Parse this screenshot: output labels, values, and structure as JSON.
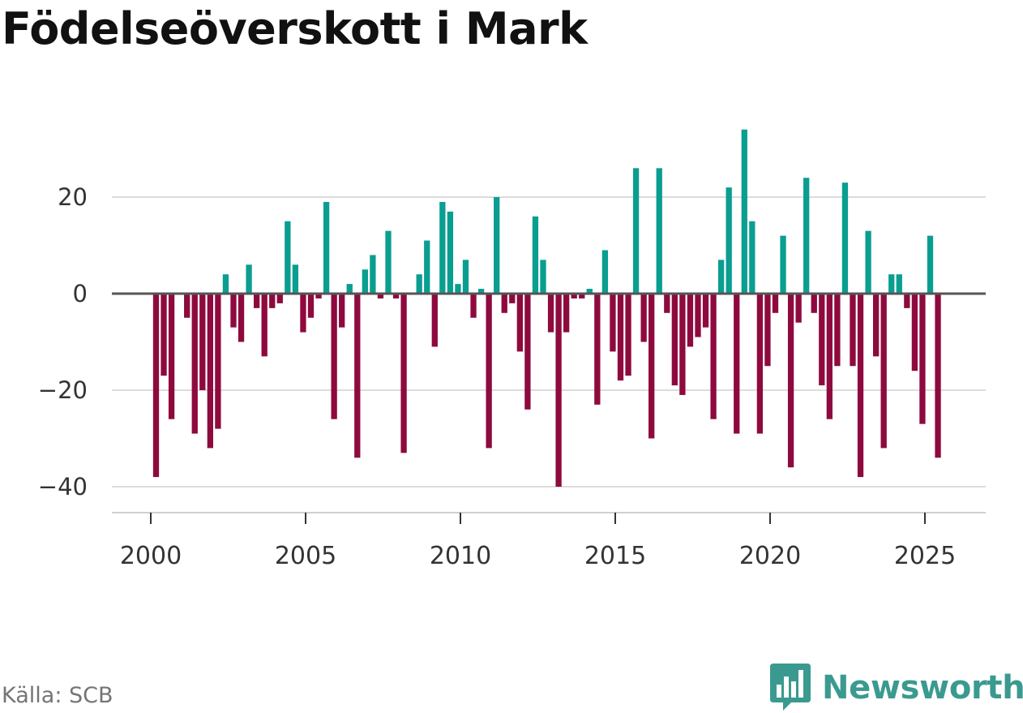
{
  "title": "Födelseöverskott i Mark",
  "source": "Källa: SCB",
  "brand": "Newsworthy",
  "colors": {
    "positive": "#0a9e91",
    "negative": "#8e0a3e",
    "grid": "#dcdcdc",
    "zero_line": "#555555",
    "brand": "#3a9a90"
  },
  "chart_data": {
    "type": "bar",
    "title": "Födelseöverskott i Mark",
    "xlabel": "",
    "ylabel": "",
    "period": "monthly, by quarter-ish bars",
    "x_start": 2000.17,
    "x_step": 0.25,
    "xlim": [
      1999.5,
      2027.0
    ],
    "ylim": [
      -43,
      36
    ],
    "xticks": [
      2000,
      2005,
      2010,
      2015,
      2020,
      2025
    ],
    "xtick_labels": [
      "2000",
      "2005",
      "2010",
      "2015",
      "2020",
      "2025"
    ],
    "yticks": [
      20,
      0,
      -20,
      -40
    ],
    "ytick_labels": [
      "20",
      "0",
      "−20",
      "−40"
    ],
    "values": [
      -38,
      -17,
      -26,
      0,
      -5,
      -29,
      -20,
      -32,
      -28,
      4,
      -7,
      -10,
      6,
      -3,
      -13,
      -3,
      -2,
      15,
      6,
      -8,
      -5,
      -1,
      19,
      -26,
      -7,
      2,
      -34,
      5,
      8,
      -1,
      13,
      -1,
      -33,
      0,
      4,
      11,
      -11,
      19,
      17,
      2,
      7,
      -5,
      1,
      -32,
      20,
      -4,
      -2,
      -12,
      -24,
      16,
      7,
      -8,
      -40,
      -8,
      -1,
      -1,
      1,
      -23,
      9,
      -12,
      -18,
      -17,
      26,
      -10,
      -30,
      26,
      -4,
      -19,
      -21,
      -11,
      -9,
      -7,
      -26,
      7,
      22,
      -29,
      34,
      15,
      -29,
      -15,
      -4,
      12,
      -36,
      -6,
      24,
      -4,
      -19,
      -26,
      -15,
      23,
      -15,
      -38,
      13,
      -13,
      -32,
      4,
      4,
      -3,
      -16,
      -27,
      12,
      -34
    ]
  }
}
